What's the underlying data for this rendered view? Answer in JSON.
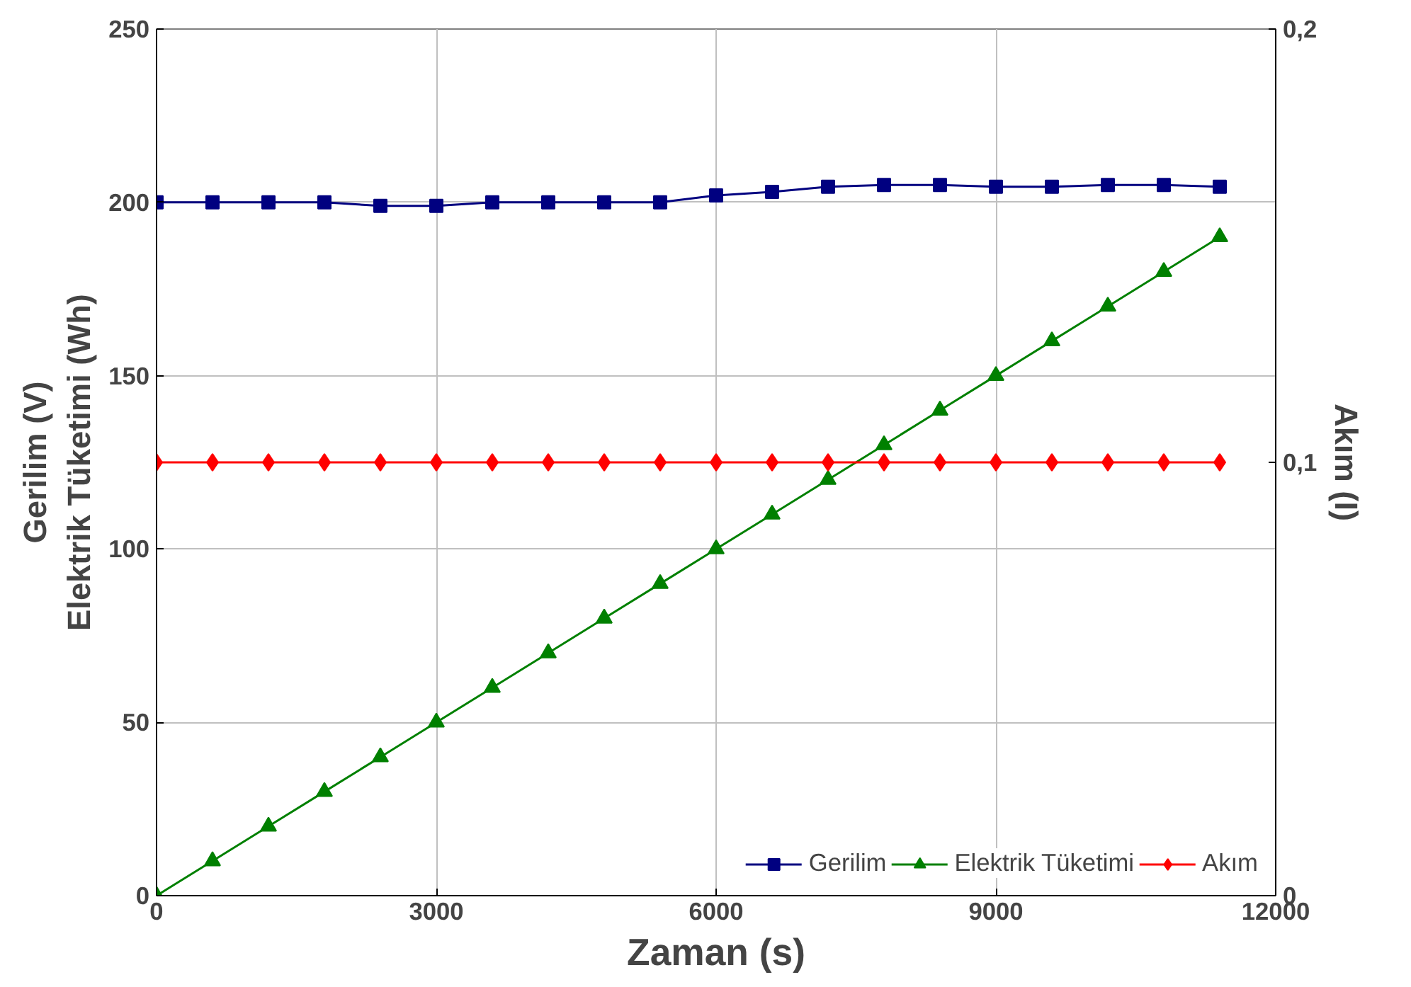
{
  "chart_data": {
    "type": "line",
    "x": [
      0,
      600,
      1200,
      1800,
      2400,
      3000,
      3600,
      4200,
      4800,
      5400,
      6000,
      6600,
      7200,
      7800,
      8400,
      9000,
      9600,
      10200,
      10800,
      11400
    ],
    "series": [
      {
        "name": "Gerilim",
        "color": "#000080",
        "marker": "square",
        "values": [
          200,
          200,
          200,
          200,
          199,
          199,
          200,
          200,
          200,
          200,
          202,
          203,
          204.5,
          205,
          205,
          204.5,
          204.5,
          205,
          205,
          204.5
        ]
      },
      {
        "name": "Elektrik Tüketimi",
        "color": "#008000",
        "marker": "triangle",
        "values": [
          0,
          10,
          20,
          30,
          40,
          50,
          60,
          70,
          80,
          90,
          100,
          110,
          120,
          130,
          140,
          150,
          160,
          170,
          180,
          190
        ]
      },
      {
        "name": "Akım",
        "color": "#ff0000",
        "marker": "diamond",
        "axis": "y2",
        "values": [
          0.1,
          0.1,
          0.1,
          0.1,
          0.1,
          0.1,
          0.1,
          0.1,
          0.1,
          0.1,
          0.1,
          0.1,
          0.1,
          0.1,
          0.1,
          0.1,
          0.1,
          0.1,
          0.1,
          0.1
        ]
      }
    ],
    "xlabel": "Zaman (s)",
    "ylabel": "Gerilim (V)\nElektrik Tüketimi (Wh)",
    "y2label": "Akım (I)",
    "xlim": [
      0,
      12000
    ],
    "xticks": [
      0,
      3000,
      6000,
      9000,
      12000
    ],
    "ylim": [
      0,
      250
    ],
    "yticks": [
      0,
      50,
      100,
      150,
      200,
      250
    ],
    "y2lim": [
      0,
      0.2
    ],
    "y2ticks": [
      {
        "value": 0,
        "label": "0"
      },
      {
        "value": 0.1,
        "label": "0,1"
      },
      {
        "value": 0.2,
        "label": "0,2"
      }
    ],
    "grid": true,
    "legend": "bottom right",
    "line_style": "solid"
  }
}
